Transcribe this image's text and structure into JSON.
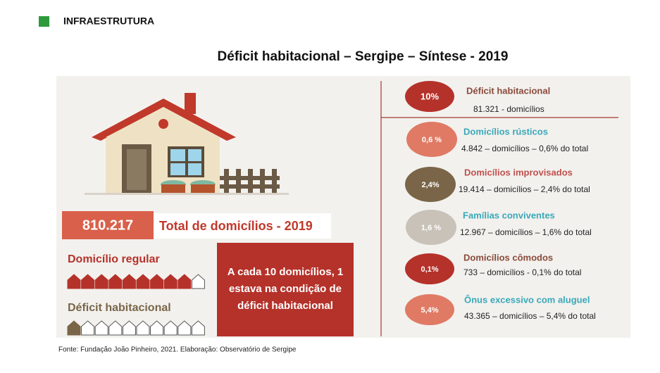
{
  "header": {
    "title": "INFRAESTRUTURA"
  },
  "title": "Déficit habitacional – Sergipe – Síntese - 2019",
  "total": {
    "value": "810.217",
    "label": "Total de domicílios - 2019"
  },
  "regular": {
    "label": "Domicílio regular"
  },
  "deficit": {
    "label": "Déficit habitacional"
  },
  "callout": [
    "A cada 10 domicílios, 1",
    "estava na condição de",
    "déficit habitacional"
  ],
  "items": [
    {
      "percent": "10%",
      "title": "Déficit habitacional",
      "detail": "81.321 - domicílios"
    },
    {
      "percent": "0,6 %",
      "title": "Domicílios rústicos",
      "detail": "4.842 – domicílios – 0,6% do total"
    },
    {
      "percent": "2,4%",
      "title": "Domicílios improvisados",
      "detail": "19.414 – domicílios –  2,4% do total"
    },
    {
      "percent": "1,6 %",
      "title": "Famílias conviventes",
      "detail": "12.967 – domicílios – 1,6% do total"
    },
    {
      "percent": "0,1%",
      "title": "Domicílios cômodos",
      "detail": "733  – domicílios - 0,1% do total"
    },
    {
      "percent": "5,4%",
      "title": "Ônus excessivo com aluguel",
      "detail": "43.365 – domicílios – 5,4% do total"
    }
  ],
  "source": "Fonte: Fundação João Pinheiro, 2021. Elaboração: Observatório de Sergipe"
}
